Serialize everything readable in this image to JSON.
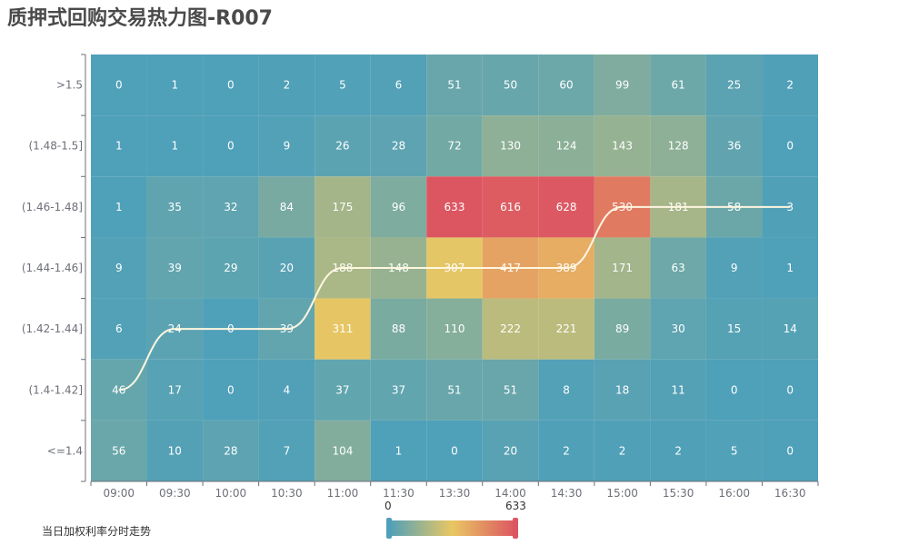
{
  "title": "质押式回购交易热力图-R007",
  "footnote": "当日加权利率分时走势",
  "visual_map": {
    "min": "0",
    "max": "633",
    "color_low": "#4fa0b9",
    "color_mid": "#e9c763",
    "color_high": "#dc5662"
  },
  "chart_data": {
    "type": "heatmap",
    "x_categories": [
      "09:00",
      "09:30",
      "10:00",
      "10:30",
      "11:00",
      "11:30",
      "13:30",
      "14:00",
      "14:30",
      "15:00",
      "15:30",
      "16:00",
      "16:30"
    ],
    "y_categories": [
      ">1.5",
      "(1.48-1.5]",
      "(1.46-1.48]",
      "(1.44-1.46]",
      "(1.42-1.44]",
      "(1.4-1.42]",
      "<=1.4"
    ],
    "values": [
      [
        0,
        1,
        0,
        2,
        5,
        6,
        51,
        50,
        60,
        99,
        61,
        25,
        2
      ],
      [
        1,
        1,
        0,
        9,
        26,
        28,
        72,
        130,
        124,
        143,
        128,
        36,
        0
      ],
      [
        1,
        35,
        32,
        84,
        175,
        96,
        633,
        616,
        628,
        530,
        181,
        58,
        3
      ],
      [
        9,
        39,
        29,
        20,
        188,
        148,
        307,
        417,
        389,
        171,
        63,
        9,
        1
      ],
      [
        6,
        24,
        0,
        39,
        311,
        88,
        110,
        222,
        221,
        89,
        30,
        15,
        14
      ],
      [
        46,
        17,
        0,
        4,
        37,
        37,
        51,
        51,
        8,
        18,
        11,
        0,
        0
      ],
      [
        56,
        10,
        28,
        7,
        104,
        1,
        0,
        20,
        2,
        2,
        2,
        5,
        0
      ]
    ],
    "value_range": [
      0,
      633
    ],
    "trend_line": {
      "name": "当日加权利率分时走势",
      "y_values": [
        "(1.4-1.42]",
        "(1.42-1.44]",
        "(1.42-1.44]",
        "(1.42-1.44]",
        "(1.44-1.46]",
        "(1.44-1.46]",
        "(1.44-1.46]",
        "(1.44-1.46]",
        "(1.44-1.46]",
        "(1.46-1.48]",
        "(1.46-1.48]",
        "(1.46-1.48]",
        "(1.46-1.48]"
      ],
      "color": "#fff6e0"
    }
  }
}
